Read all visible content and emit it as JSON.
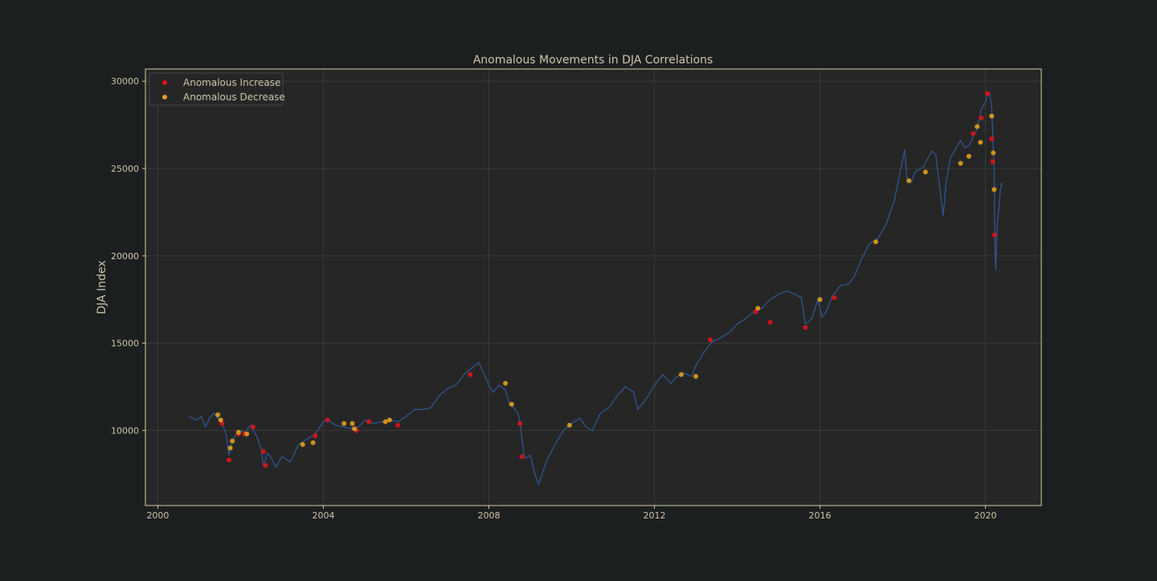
{
  "chart_data": {
    "type": "line",
    "title": "Anomalous Movements in DJA Correlations",
    "xlabel": "",
    "ylabel": "DJA Index",
    "xlim": [
      1999.7,
      2021.35
    ],
    "ylim": [
      5700,
      30700
    ],
    "x_ticks": [
      2000,
      2004,
      2008,
      2012,
      2016,
      2020
    ],
    "x_tick_labels": [
      "2000",
      "2004",
      "2008",
      "2012",
      "2016",
      "2020"
    ],
    "y_ticks": [
      10000,
      15000,
      20000,
      25000,
      30000
    ],
    "y_tick_labels": [
      "10000",
      "15000",
      "20000",
      "25000",
      "30000"
    ],
    "grid": true,
    "legend_placement": "top-left",
    "colors": {
      "background": "#1c1f20",
      "plot_background": "#262626",
      "frame": "#d6cfa4",
      "grid": "#3a3a3a",
      "text": "#cfc6a8",
      "line": "#2f5693",
      "increase": "#e0141c",
      "decrease": "#e2a019"
    },
    "series": [
      {
        "kind": "line",
        "x": [
          2000.75,
          2000.85,
          2000.95,
          2001.05,
          2001.15,
          2001.25,
          2001.35,
          2001.45,
          2001.55,
          2001.65,
          2001.72,
          2001.78,
          2001.85,
          2001.95,
          2002.1,
          2002.25,
          2002.4,
          2002.5,
          2002.55,
          2002.65,
          2002.75,
          2002.85,
          2003.0,
          2003.2,
          2003.4,
          2003.6,
          2003.8,
          2004.0,
          2004.1,
          2004.3,
          2004.5,
          2004.7,
          2004.85,
          2005.0,
          2005.2,
          2005.4,
          2005.6,
          2005.8,
          2006.0,
          2006.2,
          2006.4,
          2006.6,
          2006.8,
          2007.0,
          2007.2,
          2007.4,
          2007.6,
          2007.75,
          2007.85,
          2008.0,
          2008.1,
          2008.25,
          2008.4,
          2008.5,
          2008.6,
          2008.7,
          2008.75,
          2008.8,
          2008.85,
          2008.9,
          2009.0,
          2009.1,
          2009.2,
          2009.4,
          2009.6,
          2009.8,
          2010.0,
          2010.2,
          2010.35,
          2010.5,
          2010.7,
          2010.9,
          2011.1,
          2011.3,
          2011.5,
          2011.6,
          2011.7,
          2011.8,
          2012.0,
          2012.2,
          2012.4,
          2012.5,
          2012.7,
          2012.9,
          2013.0,
          2013.2,
          2013.4,
          2013.6,
          2013.8,
          2014.0,
          2014.2,
          2014.4,
          2014.6,
          2014.8,
          2015.0,
          2015.2,
          2015.4,
          2015.55,
          2015.65,
          2015.8,
          2015.95,
          2016.05,
          2016.15,
          2016.3,
          2016.5,
          2016.7,
          2016.85,
          2017.0,
          2017.2,
          2017.4,
          2017.6,
          2017.8,
          2018.0,
          2018.05,
          2018.1,
          2018.2,
          2018.3,
          2018.5,
          2018.7,
          2018.8,
          2018.9,
          2018.98,
          2019.05,
          2019.15,
          2019.3,
          2019.4,
          2019.5,
          2019.6,
          2019.7,
          2019.8,
          2019.9,
          2020.0,
          2020.05,
          2020.1,
          2020.15,
          2020.18,
          2020.21,
          2020.23,
          2020.25,
          2020.28,
          2020.32,
          2020.36,
          2020.4
        ],
        "y": [
          10800,
          10700,
          10600,
          10800,
          10200,
          10700,
          11000,
          10700,
          10400,
          9800,
          8600,
          9200,
          9600,
          10000,
          9900,
          10300,
          9600,
          8900,
          8000,
          8700,
          8400,
          7900,
          8500,
          8200,
          9200,
          9500,
          9800,
          10500,
          10600,
          10300,
          10200,
          10100,
          10200,
          10600,
          10400,
          10500,
          10600,
          10500,
          10800,
          11200,
          11200,
          11300,
          12000,
          12400,
          12600,
          13200,
          13600,
          13900,
          13400,
          12600,
          12200,
          12600,
          12300,
          11500,
          11300,
          11000,
          10500,
          9500,
          8600,
          8400,
          8600,
          7600,
          6900,
          8300,
          9200,
          10000,
          10400,
          10700,
          10200,
          10000,
          11000,
          11300,
          12000,
          12500,
          12200,
          11200,
          11500,
          11800,
          12600,
          13200,
          12700,
          13000,
          13300,
          13100,
          13700,
          14500,
          15100,
          15300,
          15600,
          16100,
          16400,
          16800,
          17000,
          17500,
          17800,
          18000,
          17800,
          17600,
          16100,
          16400,
          17500,
          16500,
          16800,
          17700,
          18300,
          18400,
          18900,
          19800,
          20700,
          21000,
          21800,
          23200,
          25500,
          26100,
          24500,
          24200,
          24800,
          25100,
          26000,
          25800,
          23800,
          22300,
          24200,
          25600,
          26200,
          26600,
          26200,
          26300,
          26800,
          27300,
          28400,
          28800,
          29200,
          29300,
          28600,
          26800,
          25000,
          20500,
          19200,
          21700,
          22600,
          23800,
          24200
        ]
      },
      {
        "kind": "scatter",
        "name": "Anomalous Increase",
        "x": [
          2001.55,
          2001.72,
          2001.95,
          2002.1,
          2002.3,
          2002.55,
          2002.6,
          2003.8,
          2004.1,
          2004.8,
          2005.1,
          2005.8,
          2007.55,
          2008.75,
          2008.8,
          2013.35,
          2014.45,
          2014.8,
          2015.65,
          2016.35,
          2019.7,
          2019.9,
          2020.05,
          2020.15,
          2020.18,
          2020.22
        ],
        "y": [
          10400,
          8300,
          9800,
          9800,
          10200,
          8800,
          8000,
          9700,
          10600,
          10000,
          10500,
          10300,
          13200,
          10400,
          8500,
          15200,
          16800,
          16200,
          15900,
          17600,
          27000,
          27900,
          29300,
          26700,
          25400,
          21200
        ]
      },
      {
        "kind": "scatter",
        "name": "Anomalous Decrease",
        "x": [
          2001.45,
          2001.52,
          2001.75,
          2001.8,
          2001.95,
          2002.15,
          2003.5,
          2003.75,
          2004.5,
          2004.7,
          2004.75,
          2005.5,
          2005.6,
          2008.4,
          2008.55,
          2009.95,
          2012.65,
          2013.0,
          2014.5,
          2016.0,
          2017.35,
          2018.15,
          2018.55,
          2019.4,
          2019.6,
          2019.8,
          2019.88,
          2020.15,
          2020.19,
          2020.21
        ],
        "y": [
          10900,
          10600,
          9000,
          9400,
          9900,
          9800,
          9200,
          9300,
          10400,
          10400,
          10100,
          10500,
          10600,
          12700,
          11500,
          10300,
          13200,
          13100,
          17000,
          17500,
          20800,
          24300,
          24800,
          25300,
          25700,
          27400,
          26500,
          28000,
          25900,
          23800
        ]
      }
    ]
  }
}
